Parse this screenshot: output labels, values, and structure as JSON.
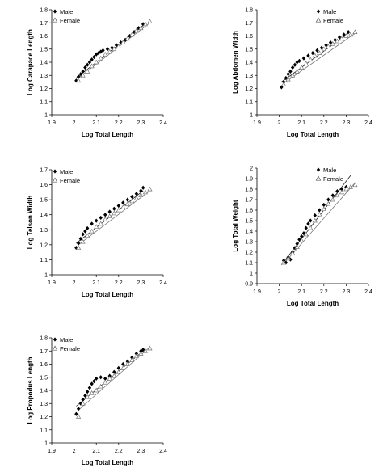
{
  "chart_data": [
    {
      "type": "scatter",
      "xlabel": "Log Total Length",
      "ylabel": "Log Carapace Length",
      "xlim": [
        1.9,
        2.4
      ],
      "ylim": [
        1.0,
        1.8
      ],
      "x_ticks": [
        "1.9",
        "2",
        "2.1",
        "2.2",
        "2.3",
        "2.4"
      ],
      "y_ticks": [
        "1",
        "1.1",
        "1.2",
        "1.3",
        "1.4",
        "1.5",
        "1.6",
        "1.7",
        "1.8"
      ],
      "legend_position": "top-left",
      "grid": false,
      "series": [
        {
          "name": "Male",
          "marker": "diamond-filled",
          "points": [
            [
              2.01,
              1.26
            ],
            [
              2.02,
              1.29
            ],
            [
              2.03,
              1.31
            ],
            [
              2.04,
              1.33
            ],
            [
              2.05,
              1.36
            ],
            [
              2.06,
              1.38
            ],
            [
              2.07,
              1.4
            ],
            [
              2.08,
              1.42
            ],
            [
              2.09,
              1.44
            ],
            [
              2.1,
              1.46
            ],
            [
              2.11,
              1.47
            ],
            [
              2.12,
              1.48
            ],
            [
              2.13,
              1.49
            ],
            [
              2.15,
              1.5
            ],
            [
              2.17,
              1.51
            ],
            [
              2.19,
              1.53
            ],
            [
              2.21,
              1.55
            ],
            [
              2.23,
              1.57
            ],
            [
              2.25,
              1.6
            ],
            [
              2.27,
              1.63
            ],
            [
              2.29,
              1.66
            ],
            [
              2.31,
              1.69
            ]
          ],
          "fit_line": [
            [
              2.01,
              1.28
            ],
            [
              2.31,
              1.68
            ]
          ]
        },
        {
          "name": "Female",
          "marker": "triangle-open",
          "points": [
            [
              2.02,
              1.26
            ],
            [
              2.04,
              1.3
            ],
            [
              2.06,
              1.33
            ],
            [
              2.08,
              1.37
            ],
            [
              2.1,
              1.4
            ],
            [
              2.12,
              1.43
            ],
            [
              2.14,
              1.46
            ],
            [
              2.16,
              1.48
            ],
            [
              2.18,
              1.5
            ],
            [
              2.2,
              1.52
            ],
            [
              2.22,
              1.55
            ],
            [
              2.24,
              1.58
            ],
            [
              2.26,
              1.61
            ],
            [
              2.28,
              1.64
            ],
            [
              2.3,
              1.66
            ],
            [
              2.32,
              1.69
            ],
            [
              2.34,
              1.71
            ]
          ],
          "fit_line": [
            [
              2.02,
              1.28
            ],
            [
              2.34,
              1.7
            ]
          ]
        }
      ]
    },
    {
      "type": "scatter",
      "xlabel": "Log Total Length",
      "ylabel": "Log Abdomen Width",
      "xlim": [
        1.9,
        2.4
      ],
      "ylim": [
        1.0,
        1.8
      ],
      "x_ticks": [
        "1.9",
        "2",
        "2.1",
        "2.2",
        "2.3",
        "2.4"
      ],
      "y_ticks": [
        "1",
        "1.1",
        "1.2",
        "1.3",
        "1.4",
        "1.5",
        "1.6",
        "1.7",
        "1.8"
      ],
      "legend_position": "top-right",
      "grid": false,
      "series": [
        {
          "name": "Male",
          "marker": "diamond-filled",
          "points": [
            [
              2.01,
              1.21
            ],
            [
              2.02,
              1.25
            ],
            [
              2.03,
              1.28
            ],
            [
              2.04,
              1.31
            ],
            [
              2.05,
              1.33
            ],
            [
              2.06,
              1.36
            ],
            [
              2.07,
              1.38
            ],
            [
              2.08,
              1.4
            ],
            [
              2.09,
              1.41
            ],
            [
              2.11,
              1.43
            ],
            [
              2.13,
              1.45
            ],
            [
              2.15,
              1.47
            ],
            [
              2.17,
              1.49
            ],
            [
              2.19,
              1.51
            ],
            [
              2.21,
              1.53
            ],
            [
              2.23,
              1.55
            ],
            [
              2.25,
              1.57
            ],
            [
              2.27,
              1.59
            ],
            [
              2.29,
              1.61
            ],
            [
              2.31,
              1.63
            ]
          ],
          "fit_line": [
            [
              2.01,
              1.25
            ],
            [
              2.31,
              1.62
            ]
          ]
        },
        {
          "name": "Female",
          "marker": "triangle-open",
          "points": [
            [
              2.02,
              1.23
            ],
            [
              2.04,
              1.27
            ],
            [
              2.06,
              1.3
            ],
            [
              2.08,
              1.33
            ],
            [
              2.1,
              1.36
            ],
            [
              2.12,
              1.39
            ],
            [
              2.14,
              1.42
            ],
            [
              2.16,
              1.45
            ],
            [
              2.18,
              1.47
            ],
            [
              2.2,
              1.5
            ],
            [
              2.22,
              1.52
            ],
            [
              2.24,
              1.54
            ],
            [
              2.26,
              1.56
            ],
            [
              2.28,
              1.58
            ],
            [
              2.3,
              1.6
            ],
            [
              2.32,
              1.61
            ],
            [
              2.34,
              1.63
            ]
          ],
          "fit_line": [
            [
              2.02,
              1.24
            ],
            [
              2.34,
              1.62
            ]
          ]
        }
      ]
    },
    {
      "type": "scatter",
      "xlabel": "Log Total Length",
      "ylabel": "Log Telson Width",
      "xlim": [
        1.9,
        2.4
      ],
      "ylim": [
        1.0,
        1.7
      ],
      "x_ticks": [
        "1.9",
        "2",
        "2.1",
        "2.2",
        "2.3",
        "2.4"
      ],
      "y_ticks": [
        "1",
        "1.1",
        "1.2",
        "1.3",
        "1.4",
        "1.5",
        "1.6",
        "1.7"
      ],
      "legend_position": "top-left",
      "grid": false,
      "series": [
        {
          "name": "Male",
          "marker": "diamond-filled",
          "points": [
            [
              2.01,
              1.18
            ],
            [
              2.02,
              1.21
            ],
            [
              2.03,
              1.24
            ],
            [
              2.04,
              1.27
            ],
            [
              2.05,
              1.29
            ],
            [
              2.06,
              1.31
            ],
            [
              2.08,
              1.34
            ],
            [
              2.1,
              1.36
            ],
            [
              2.12,
              1.38
            ],
            [
              2.14,
              1.4
            ],
            [
              2.16,
              1.42
            ],
            [
              2.18,
              1.44
            ],
            [
              2.2,
              1.46
            ],
            [
              2.22,
              1.48
            ],
            [
              2.24,
              1.5
            ],
            [
              2.26,
              1.52
            ],
            [
              2.28,
              1.54
            ],
            [
              2.3,
              1.56
            ],
            [
              2.31,
              1.58
            ]
          ],
          "fit_line": [
            [
              2.01,
              1.21
            ],
            [
              2.31,
              1.56
            ]
          ]
        },
        {
          "name": "Female",
          "marker": "triangle-open",
          "points": [
            [
              2.02,
              1.18
            ],
            [
              2.04,
              1.22
            ],
            [
              2.06,
              1.26
            ],
            [
              2.08,
              1.29
            ],
            [
              2.1,
              1.32
            ],
            [
              2.12,
              1.34
            ],
            [
              2.14,
              1.37
            ],
            [
              2.16,
              1.39
            ],
            [
              2.18,
              1.41
            ],
            [
              2.2,
              1.43
            ],
            [
              2.22,
              1.45
            ],
            [
              2.24,
              1.47
            ],
            [
              2.26,
              1.49
            ],
            [
              2.28,
              1.51
            ],
            [
              2.3,
              1.53
            ],
            [
              2.32,
              1.55
            ],
            [
              2.34,
              1.57
            ]
          ],
          "fit_line": [
            [
              2.02,
              1.2
            ],
            [
              2.34,
              1.56
            ]
          ]
        }
      ]
    },
    {
      "type": "scatter",
      "xlabel": "Log Total Length",
      "ylabel": "Log Total Weight",
      "xlim": [
        1.9,
        2.4
      ],
      "ylim": [
        0.9,
        2.0
      ],
      "x_ticks": [
        "1.9",
        "2",
        "2.1",
        "2.2",
        "2.3",
        "2.4"
      ],
      "y_ticks": [
        "0.9",
        "1",
        "1.1",
        "1.2",
        "1.3",
        "1.4",
        "1.5",
        "1.6",
        "1.7",
        "1.8",
        "1.9",
        "2"
      ],
      "legend_position": "top-right",
      "grid": false,
      "series": [
        {
          "name": "Male",
          "marker": "diamond-filled",
          "points": [
            [
              2.02,
              1.12
            ],
            [
              2.03,
              1.1
            ],
            [
              2.04,
              1.15
            ],
            [
              2.05,
              1.13
            ],
            [
              2.06,
              1.2
            ],
            [
              2.07,
              1.24
            ],
            [
              2.08,
              1.28
            ],
            [
              2.09,
              1.32
            ],
            [
              2.1,
              1.35
            ],
            [
              2.11,
              1.38
            ],
            [
              2.12,
              1.43
            ],
            [
              2.13,
              1.47
            ],
            [
              2.14,
              1.5
            ],
            [
              2.16,
              1.55
            ],
            [
              2.18,
              1.6
            ],
            [
              2.2,
              1.65
            ],
            [
              2.22,
              1.7
            ],
            [
              2.24,
              1.74
            ],
            [
              2.26,
              1.78
            ],
            [
              2.28,
              1.8
            ],
            [
              2.3,
              1.82
            ]
          ],
          "fit_line": [
            [
              2.01,
              1.08
            ],
            [
              2.32,
              1.93
            ]
          ]
        },
        {
          "name": "Female",
          "marker": "triangle-open",
          "points": [
            [
              2.02,
              1.1
            ],
            [
              2.04,
              1.14
            ],
            [
              2.06,
              1.19
            ],
            [
              2.08,
              1.25
            ],
            [
              2.1,
              1.31
            ],
            [
              2.12,
              1.37
            ],
            [
              2.14,
              1.43
            ],
            [
              2.16,
              1.5
            ],
            [
              2.18,
              1.56
            ],
            [
              2.2,
              1.61
            ],
            [
              2.22,
              1.66
            ],
            [
              2.24,
              1.7
            ],
            [
              2.26,
              1.74
            ],
            [
              2.28,
              1.77
            ],
            [
              2.3,
              1.8
            ],
            [
              2.32,
              1.82
            ],
            [
              2.34,
              1.84
            ]
          ],
          "fit_line": [
            [
              2.02,
              1.09
            ],
            [
              2.34,
              1.86
            ]
          ]
        }
      ]
    },
    {
      "type": "scatter",
      "xlabel": "Log Total Length",
      "ylabel": "Log Propodus Length",
      "xlim": [
        1.9,
        2.4
      ],
      "ylim": [
        1.0,
        1.8
      ],
      "x_ticks": [
        "1.9",
        "2",
        "2.1",
        "2.2",
        "2.3",
        "2.4"
      ],
      "y_ticks": [
        "1",
        "1.1",
        "1.2",
        "1.3",
        "1.4",
        "1.5",
        "1.6",
        "1.7",
        "1.8"
      ],
      "legend_position": "top-left",
      "grid": false,
      "series": [
        {
          "name": "Male",
          "marker": "diamond-filled",
          "points": [
            [
              2.01,
              1.22
            ],
            [
              2.02,
              1.26
            ],
            [
              2.03,
              1.3
            ],
            [
              2.04,
              1.33
            ],
            [
              2.05,
              1.36
            ],
            [
              2.06,
              1.39
            ],
            [
              2.07,
              1.42
            ],
            [
              2.08,
              1.45
            ],
            [
              2.09,
              1.47
            ],
            [
              2.1,
              1.49
            ],
            [
              2.12,
              1.5
            ],
            [
              2.14,
              1.49
            ],
            [
              2.16,
              1.51
            ],
            [
              2.18,
              1.54
            ],
            [
              2.2,
              1.57
            ],
            [
              2.22,
              1.6
            ],
            [
              2.24,
              1.62
            ],
            [
              2.26,
              1.65
            ],
            [
              2.28,
              1.68
            ],
            [
              2.3,
              1.7
            ],
            [
              2.31,
              1.71
            ]
          ],
          "fit_line": [
            [
              2.01,
              1.28
            ],
            [
              2.31,
              1.7
            ]
          ]
        },
        {
          "name": "Female",
          "marker": "triangle-open",
          "points": [
            [
              2.02,
              1.2
            ],
            [
              2.04,
              1.3
            ],
            [
              2.06,
              1.35
            ],
            [
              2.08,
              1.38
            ],
            [
              2.1,
              1.4
            ],
            [
              2.12,
              1.43
            ],
            [
              2.14,
              1.46
            ],
            [
              2.16,
              1.49
            ],
            [
              2.18,
              1.51
            ],
            [
              2.2,
              1.54
            ],
            [
              2.22,
              1.57
            ],
            [
              2.24,
              1.6
            ],
            [
              2.26,
              1.63
            ],
            [
              2.28,
              1.66
            ],
            [
              2.3,
              1.68
            ],
            [
              2.32,
              1.7
            ],
            [
              2.34,
              1.72
            ]
          ],
          "fit_line": [
            [
              2.02,
              1.25
            ],
            [
              2.34,
              1.73
            ]
          ]
        }
      ]
    }
  ]
}
